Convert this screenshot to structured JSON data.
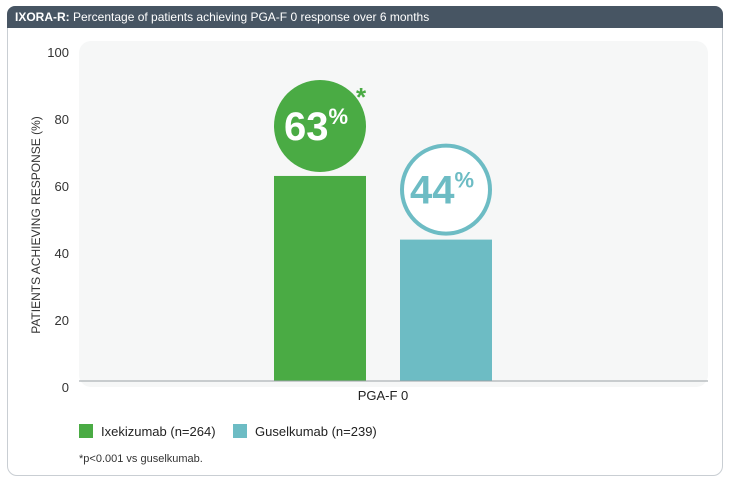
{
  "header": {
    "title_bold": "IXORA-R:",
    "title_rest": " Percentage of patients achieving PGA-F 0 response over 6 months"
  },
  "chart_data": {
    "type": "bar",
    "categories": [
      "PGA-F 0"
    ],
    "ylabel": "PATIENTS ACHIEVING RESPONSE (%)",
    "ylim": [
      0,
      100
    ],
    "yticks": [
      0,
      20,
      40,
      60,
      80,
      100
    ],
    "grid": false,
    "series": [
      {
        "name": "Ixekizumab (n=264)",
        "value": 63,
        "label_number": "63",
        "label_unit": "%",
        "marker": "*",
        "color": "#4aab44"
      },
      {
        "name": "Guselkumab (n=239)",
        "value": 44,
        "label_number": "44",
        "label_unit": "%",
        "marker": "",
        "color": "#6dbcc4"
      }
    ]
  },
  "footnote": "*p<0.001 vs guselkumab.",
  "colors": {
    "header_bg": "#475563",
    "plot_bg": "#f6f7f7"
  }
}
